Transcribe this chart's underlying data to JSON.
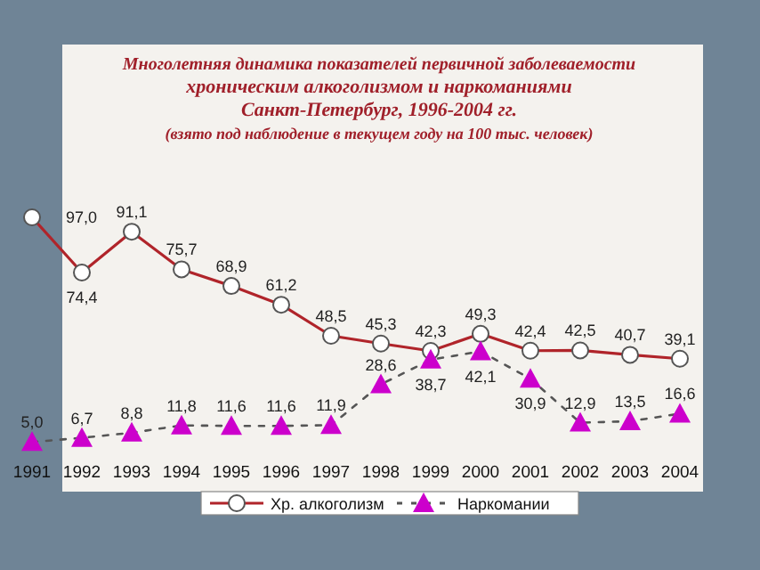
{
  "chart_data": {
    "type": "line",
    "title": "Многолетняя динамика показателей первичной заболеваемости\nхроническим алкоголизмом и наркоманиями\nСанкт-Петербург, 1996-2004 гг.",
    "subtitle": "(взято под наблюдение в текущем году на 100 тыс. человек)",
    "categories": [
      "1991",
      "1992",
      "1993",
      "1994",
      "1995",
      "1996",
      "1997",
      "1998",
      "1999",
      "2000",
      "2001",
      "2002",
      "2003",
      "2004"
    ],
    "series": [
      {
        "name": "Хр. алкоголизм",
        "color": "#b0242a",
        "marker": "circle",
        "line_style": "solid",
        "values": [
          97.0,
          74.4,
          91.1,
          75.7,
          68.9,
          61.2,
          48.5,
          45.3,
          42.3,
          49.3,
          42.4,
          42.5,
          40.7,
          39.1
        ],
        "value_labels": [
          "97,0",
          "74,4",
          "91,1",
          "75,7",
          "68,9",
          "61,2",
          "48,5",
          "45,3",
          "42,3",
          "49,3",
          "42,4",
          "42,5",
          "40,7",
          "39,1"
        ]
      },
      {
        "name": "Наркомании",
        "color": "#cc00cc",
        "marker": "triangle",
        "line_style": "dashed",
        "values": [
          5.0,
          6.7,
          8.8,
          11.8,
          11.6,
          11.6,
          11.9,
          28.6,
          38.7,
          42.1,
          30.9,
          12.9,
          13.5,
          16.6
        ],
        "value_labels": [
          "5,0",
          "6,7",
          "8,8",
          "11,8",
          "11,6",
          "11,6",
          "11,9",
          "28,6",
          "38,7",
          "42,1",
          "30,9",
          "12,9",
          "13,5",
          "16,6"
        ]
      }
    ],
    "legend": "bottom",
    "grid": false
  }
}
